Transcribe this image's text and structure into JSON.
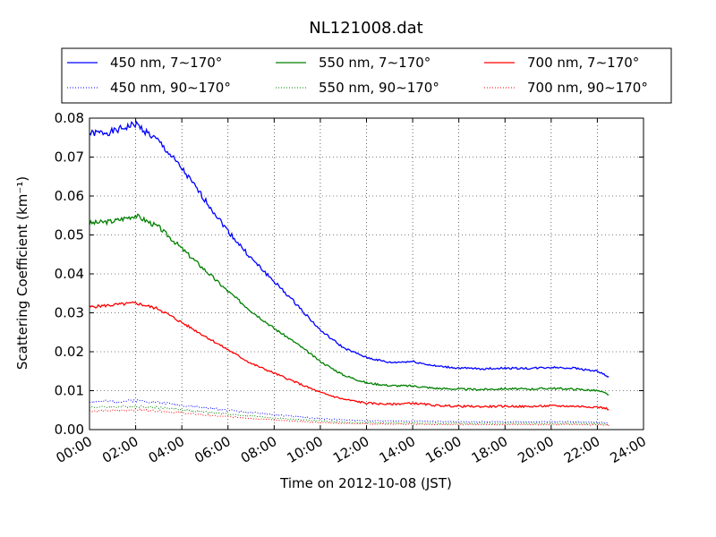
{
  "chart_data": {
    "type": "line",
    "title": "NL121008.dat",
    "xlabel": "Time on 2012-10-08 (JST)",
    "ylabel": "Scattering Coefficient (km⁻¹)",
    "xlim": [
      "00:00",
      "24:00"
    ],
    "ylim": [
      0.0,
      0.08
    ],
    "grid": true,
    "legend_position": "top",
    "x_ticks": [
      "00:00",
      "02:00",
      "04:00",
      "06:00",
      "08:00",
      "10:00",
      "12:00",
      "14:00",
      "16:00",
      "18:00",
      "20:00",
      "22:00",
      "24:00"
    ],
    "y_ticks": [
      "0.00",
      "0.01",
      "0.02",
      "0.03",
      "0.04",
      "0.05",
      "0.06",
      "0.07",
      "0.08"
    ],
    "x": [
      "00:00",
      "01:00",
      "02:00",
      "03:00",
      "04:00",
      "05:00",
      "06:00",
      "07:00",
      "08:00",
      "09:00",
      "10:00",
      "11:00",
      "12:00",
      "13:00",
      "14:00",
      "15:00",
      "16:00",
      "17:00",
      "18:00",
      "19:00",
      "20:00",
      "21:00",
      "22:00",
      "22:30"
    ],
    "series": [
      {
        "name": "450 nm, 7∼170°",
        "color": "#0000ff",
        "style": "solid",
        "values": [
          0.076,
          0.0765,
          0.0785,
          0.074,
          0.067,
          0.059,
          0.051,
          0.044,
          0.038,
          0.032,
          0.0255,
          0.021,
          0.0185,
          0.0172,
          0.0175,
          0.0163,
          0.0158,
          0.0156,
          0.0158,
          0.0157,
          0.016,
          0.0158,
          0.015,
          0.0135
        ]
      },
      {
        "name": "450 nm, 90∼170°",
        "color": "#0000ff",
        "style": "dotted",
        "values": [
          0.0072,
          0.0072,
          0.0075,
          0.007,
          0.0063,
          0.0056,
          0.005,
          0.0044,
          0.0038,
          0.0033,
          0.0028,
          0.0025,
          0.0023,
          0.0022,
          0.0022,
          0.0021,
          0.002,
          0.002,
          0.002,
          0.002,
          0.002,
          0.002,
          0.0019,
          0.0017
        ]
      },
      {
        "name": "550 nm, 7∼170°",
        "color": "#008000",
        "style": "solid",
        "values": [
          0.053,
          0.0535,
          0.055,
          0.052,
          0.0465,
          0.041,
          0.0355,
          0.0305,
          0.026,
          0.022,
          0.0175,
          0.014,
          0.012,
          0.0113,
          0.0112,
          0.0106,
          0.0104,
          0.0103,
          0.0105,
          0.0104,
          0.0106,
          0.0104,
          0.01,
          0.009
        ]
      },
      {
        "name": "550 nm, 90∼170°",
        "color": "#008000",
        "style": "dotted",
        "values": [
          0.0058,
          0.0058,
          0.006,
          0.0057,
          0.0051,
          0.0045,
          0.004,
          0.0035,
          0.003,
          0.0026,
          0.0022,
          0.0019,
          0.0018,
          0.0017,
          0.0017,
          0.0016,
          0.0016,
          0.0016,
          0.0016,
          0.0016,
          0.0016,
          0.0016,
          0.0015,
          0.0013
        ]
      },
      {
        "name": "700 nm, 7∼170°",
        "color": "#ff0000",
        "style": "solid",
        "values": [
          0.0315,
          0.032,
          0.0325,
          0.031,
          0.0275,
          0.024,
          0.0205,
          0.017,
          0.0145,
          0.012,
          0.0095,
          0.0078,
          0.0068,
          0.0065,
          0.0068,
          0.0062,
          0.006,
          0.0059,
          0.006,
          0.0059,
          0.0061,
          0.006,
          0.0058,
          0.0053
        ]
      },
      {
        "name": "700 nm, 90∼170°",
        "color": "#ff0000",
        "style": "dotted",
        "values": [
          0.0048,
          0.0049,
          0.0051,
          0.0048,
          0.0043,
          0.0037,
          0.0033,
          0.0029,
          0.0025,
          0.0021,
          0.0018,
          0.0016,
          0.0015,
          0.0014,
          0.0014,
          0.0013,
          0.0013,
          0.0013,
          0.0013,
          0.0013,
          0.0013,
          0.0013,
          0.0012,
          0.0011
        ]
      }
    ]
  }
}
